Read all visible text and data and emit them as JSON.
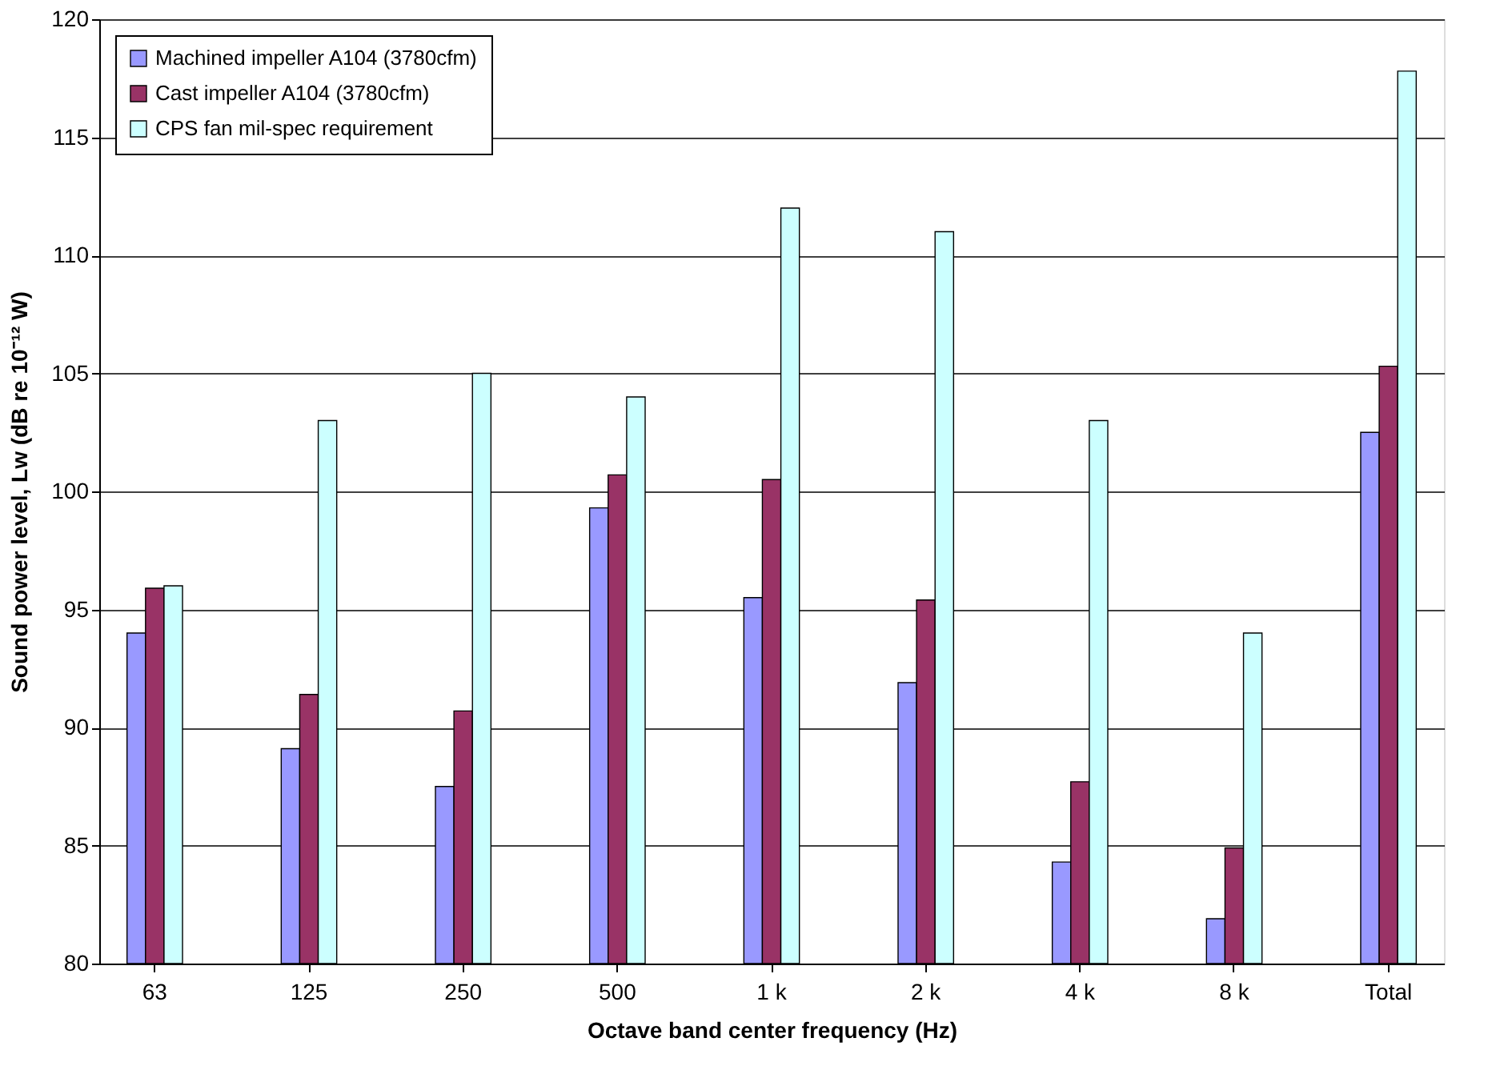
{
  "chart_data": {
    "type": "bar",
    "xlabel": "Octave band center frequency (Hz)",
    "ylabel": "Sound power level, Lw (dB re 10⁻¹² W)",
    "categories": [
      "63",
      "125",
      "250",
      "500",
      "1 k",
      "2 k",
      "4 k",
      "8 k",
      "Total"
    ],
    "series": [
      {
        "name": "Machined impeller A104 (3780cfm)",
        "color": "#9999ff",
        "values": [
          94.0,
          89.1,
          87.5,
          99.3,
          95.5,
          91.9,
          84.3,
          81.9,
          102.5
        ]
      },
      {
        "name": "Cast impeller A104 (3780cfm)",
        "color": "#993366",
        "values": [
          95.9,
          91.4,
          90.7,
          100.7,
          100.5,
          95.4,
          87.7,
          84.9,
          105.3
        ]
      },
      {
        "name": "CPS fan mil-spec requirement",
        "color": "#ccffff",
        "values": [
          96.0,
          103.0,
          105.0,
          104.0,
          112.0,
          111.0,
          103.0,
          94.0,
          117.8
        ]
      }
    ],
    "ylim": [
      80,
      120
    ],
    "yticks": [
      80,
      85,
      90,
      95,
      100,
      105,
      110,
      115,
      120
    ],
    "grid": "y",
    "legend": "top left"
  }
}
